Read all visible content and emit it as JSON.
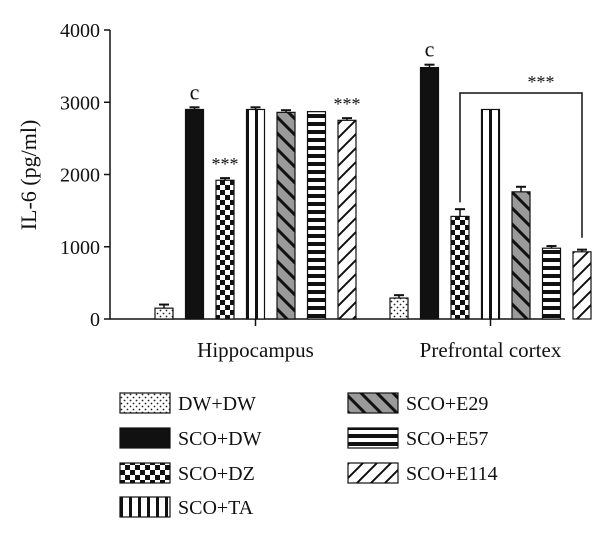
{
  "chart_data": {
    "type": "bar",
    "title": "",
    "xlabel": "",
    "ylabel": "IL-6 (pg/ml)",
    "ylim": [
      0,
      4000
    ],
    "yticks": [
      0,
      1000,
      2000,
      3000,
      4000
    ],
    "categories": [
      "Hippocampus",
      "Prefrontal cortex"
    ],
    "series": [
      {
        "name": "DW+DW",
        "pattern": "dots",
        "values": [
          150,
          290
        ],
        "errors": [
          50,
          40
        ],
        "annotations": [
          "",
          ""
        ]
      },
      {
        "name": "SCO+DW",
        "pattern": "solid",
        "values": [
          2900,
          3480
        ],
        "errors": [
          30,
          40
        ],
        "annotations": [
          "c",
          "c"
        ]
      },
      {
        "name": "SCO+DZ",
        "pattern": "checker",
        "values": [
          1920,
          1420
        ],
        "errors": [
          30,
          100
        ],
        "annotations": [
          "***",
          ""
        ]
      },
      {
        "name": "SCO+TA",
        "pattern": "vstripes",
        "values": [
          2900,
          2900
        ],
        "errors": [
          30,
          0
        ],
        "annotations": [
          "",
          ""
        ]
      },
      {
        "name": "SCO+E29",
        "pattern": "diag-gray",
        "values": [
          2860,
          1760
        ],
        "errors": [
          30,
          70
        ],
        "annotations": [
          "",
          ""
        ]
      },
      {
        "name": "SCO+E57",
        "pattern": "hstripes",
        "values": [
          2870,
          980
        ],
        "errors": [
          0,
          30
        ],
        "annotations": [
          "",
          ""
        ]
      },
      {
        "name": "SCO+E114",
        "pattern": "diag-white",
        "values": [
          2750,
          930
        ],
        "errors": [
          30,
          30
        ],
        "annotations": [
          "***",
          ""
        ]
      }
    ],
    "bracket": {
      "label": "***",
      "category": "Prefrontal cortex",
      "from_series": "SCO+DZ",
      "to_series": "SCO+E114"
    },
    "legend": {
      "placement": "bottom",
      "columns": 2
    }
  }
}
